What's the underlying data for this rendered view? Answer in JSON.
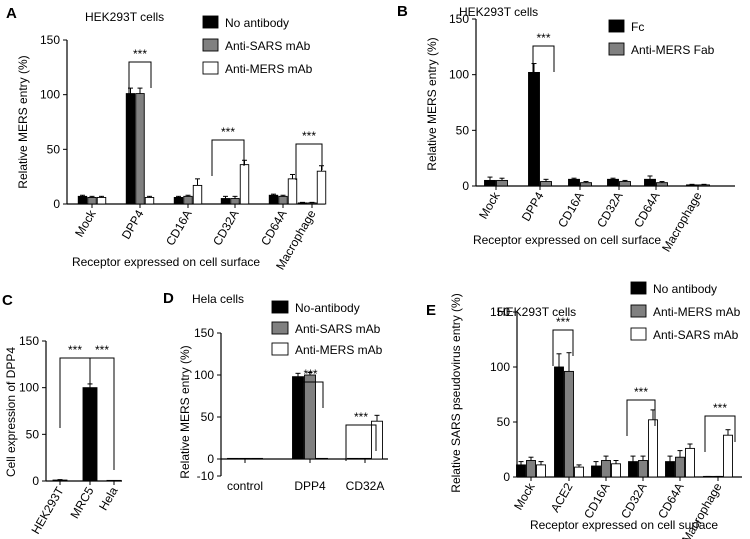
{
  "chart_data": [
    {
      "id": "A",
      "type": "bar",
      "panel_label": "A",
      "title": "HEK293T cells",
      "ylabel": "Relative MERS entry (%)",
      "xlabel": "Receptor expressed on cell surface",
      "ylim": [
        0,
        150
      ],
      "yticks": [
        "0",
        "50",
        "100",
        "150"
      ],
      "categories": [
        "Mock",
        "DPP4",
        "CD16A",
        "CD32A",
        "CD64A",
        "Macrophage"
      ],
      "series": [
        {
          "name": "No antibody",
          "color": "#000000",
          "values": [
            7,
            101,
            6,
            5,
            8,
            1
          ],
          "errors": [
            1,
            5,
            1,
            2,
            1,
            0.5
          ]
        },
        {
          "name": "Anti-SARS mAb",
          "color": "#808080",
          "values": [
            6,
            101,
            7,
            5,
            7,
            1
          ],
          "errors": [
            1,
            5,
            1,
            2,
            1,
            0.5
          ]
        },
        {
          "name": "Anti-MERS mAb",
          "color": "#ffffff",
          "values": [
            6,
            6,
            17,
            36,
            23,
            30
          ],
          "errors": [
            1,
            1,
            6,
            4,
            4,
            5
          ]
        }
      ],
      "annotations": [
        {
          "text": "***",
          "category": "DPP4"
        },
        {
          "text": "***",
          "category": "CD32A"
        },
        {
          "text": "***",
          "category": "Macrophage"
        }
      ]
    },
    {
      "id": "B",
      "type": "bar",
      "panel_label": "B",
      "title": "HEK293T cells",
      "ylabel": "Relative MERS entry (%)",
      "xlabel": "Receptor expressed on cell surface",
      "ylim": [
        0,
        150
      ],
      "yticks": [
        "0",
        "50",
        "100",
        "150"
      ],
      "categories": [
        "Mock",
        "DPP4",
        "CD16A",
        "CD32A",
        "CD64A",
        "Macrophage"
      ],
      "series": [
        {
          "name": "Fc",
          "color": "#000000",
          "values": [
            5,
            102,
            6,
            6,
            6,
            1
          ],
          "errors": [
            3,
            8,
            1,
            1,
            3,
            0.5
          ]
        },
        {
          "name": "Anti-MERS Fab",
          "color": "#808080",
          "values": [
            5,
            4,
            3,
            4,
            3,
            1
          ],
          "errors": [
            2,
            2,
            1,
            1,
            1,
            0.5
          ]
        }
      ],
      "annotations": [
        {
          "text": "***",
          "category": "DPP4"
        }
      ]
    },
    {
      "id": "C",
      "type": "bar",
      "panel_label": "C",
      "title": "",
      "ylabel": "Cell expression of DPP4",
      "xlabel": "",
      "ylim": [
        0,
        150
      ],
      "yticks": [
        "0",
        "50",
        "100",
        "150"
      ],
      "categories": [
        "HEK293T",
        "MRC5",
        "Hela"
      ],
      "series": [
        {
          "name": "DPP4",
          "color": "#000000",
          "values": [
            1,
            100,
            0
          ],
          "errors": [
            0.5,
            4,
            0
          ]
        }
      ],
      "annotations": [
        {
          "text": "***",
          "category": "HEK293T-MRC5"
        },
        {
          "text": "***",
          "category": "MRC5-Hela"
        }
      ]
    },
    {
      "id": "D",
      "type": "bar",
      "panel_label": "D",
      "title": "Hela cells",
      "ylabel": "Relative MERS entry (%)",
      "xlabel": "",
      "ylim": [
        -10,
        150
      ],
      "yticks": [
        "-10",
        "0",
        "50",
        "100",
        "150"
      ],
      "categories": [
        "control",
        "DPP4",
        "CD32A"
      ],
      "series": [
        {
          "name": "No-antibody",
          "color": "#000000",
          "values": [
            0,
            98,
            0
          ],
          "errors": [
            0,
            4,
            0
          ]
        },
        {
          "name": "Anti-SARS mAb",
          "color": "#808080",
          "values": [
            0,
            100,
            0
          ],
          "errors": [
            0,
            3,
            0
          ]
        },
        {
          "name": "Anti-MERS mAb",
          "color": "#ffffff",
          "values": [
            0,
            0,
            45
          ],
          "errors": [
            0,
            0,
            7
          ]
        }
      ],
      "annotations": [
        {
          "text": "***",
          "category": "DPP4"
        },
        {
          "text": "***",
          "category": "CD32A"
        }
      ]
    },
    {
      "id": "E",
      "type": "bar",
      "panel_label": "E",
      "title": "HEK293T cells",
      "ylabel": "Relative SARS pseudovirus entry (%)",
      "xlabel": "Receptor expressed on cell surface",
      "ylim": [
        0,
        150
      ],
      "yticks": [
        "0",
        "50",
        "100",
        "150"
      ],
      "categories": [
        "Mock",
        "ACE2",
        "CD16A",
        "CD32A",
        "CD64A",
        "Macrophage"
      ],
      "series": [
        {
          "name": "No antibody",
          "color": "#000000",
          "values": [
            11,
            100,
            10,
            14,
            14,
            0
          ],
          "errors": [
            3,
            12,
            4,
            5,
            5,
            0.5
          ]
        },
        {
          "name": "Anti-MERS mAb",
          "color": "#808080",
          "values": [
            15,
            96,
            15,
            15,
            18,
            0
          ],
          "errors": [
            3,
            17,
            4,
            4,
            6,
            0.5
          ]
        },
        {
          "name": "Anti-SARS mAb",
          "color": "#ffffff",
          "values": [
            11,
            9,
            12,
            52,
            26,
            38
          ],
          "errors": [
            3,
            2,
            3,
            9,
            4,
            5
          ]
        }
      ],
      "annotations": [
        {
          "text": "***",
          "category": "ACE2"
        },
        {
          "text": "***",
          "category": "CD32A"
        },
        {
          "text": "***",
          "category": "Macrophage"
        }
      ]
    }
  ]
}
